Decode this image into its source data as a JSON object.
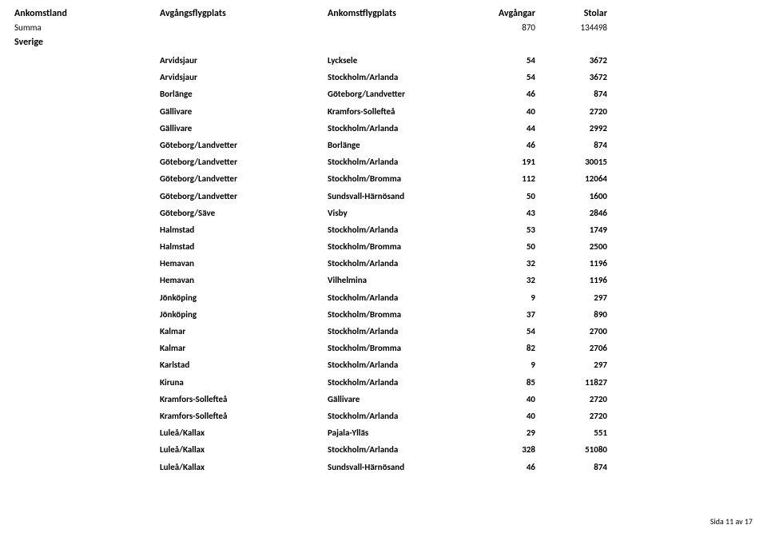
{
  "header": {
    "ankomstland": "Ankomstland",
    "avgangsflygplats": "Avgångsflygplats",
    "ankomstflygplats": "Ankomstflygplats",
    "avgangar": "Avgångar",
    "stolar": "Stolar"
  },
  "summa": {
    "label": "Summa",
    "avgangar": "870",
    "stolar": "134498"
  },
  "country": "Sverige",
  "rows": [
    {
      "dep": "Arvidsjaur",
      "arr": "Lycksele",
      "n": "54",
      "s": "3672"
    },
    {
      "dep": "Arvidsjaur",
      "arr": "Stockholm/Arlanda",
      "n": "54",
      "s": "3672"
    },
    {
      "dep": "Borlänge",
      "arr": "Göteborg/Landvetter",
      "n": "46",
      "s": "874"
    },
    {
      "dep": "Gällivare",
      "arr": "Kramfors-Sollefteå",
      "n": "40",
      "s": "2720"
    },
    {
      "dep": "Gällivare",
      "arr": "Stockholm/Arlanda",
      "n": "44",
      "s": "2992"
    },
    {
      "dep": "Göteborg/Landvetter",
      "arr": "Borlänge",
      "n": "46",
      "s": "874"
    },
    {
      "dep": "Göteborg/Landvetter",
      "arr": "Stockholm/Arlanda",
      "n": "191",
      "s": "30015"
    },
    {
      "dep": "Göteborg/Landvetter",
      "arr": "Stockholm/Bromma",
      "n": "112",
      "s": "12064"
    },
    {
      "dep": "Göteborg/Landvetter",
      "arr": "Sundsvall-Härnösand",
      "n": "50",
      "s": "1600"
    },
    {
      "dep": "Göteborg/Säve",
      "arr": "Visby",
      "n": "43",
      "s": "2846"
    },
    {
      "dep": "Halmstad",
      "arr": "Stockholm/Arlanda",
      "n": "53",
      "s": "1749"
    },
    {
      "dep": "Halmstad",
      "arr": "Stockholm/Bromma",
      "n": "50",
      "s": "2500"
    },
    {
      "dep": "Hemavan",
      "arr": "Stockholm/Arlanda",
      "n": "32",
      "s": "1196"
    },
    {
      "dep": "Hemavan",
      "arr": "Vilhelmina",
      "n": "32",
      "s": "1196"
    },
    {
      "dep": "Jönköping",
      "arr": "Stockholm/Arlanda",
      "n": "9",
      "s": "297"
    },
    {
      "dep": "Jönköping",
      "arr": "Stockholm/Bromma",
      "n": "37",
      "s": "890"
    },
    {
      "dep": "Kalmar",
      "arr": "Stockholm/Arlanda",
      "n": "54",
      "s": "2700"
    },
    {
      "dep": "Kalmar",
      "arr": "Stockholm/Bromma",
      "n": "82",
      "s": "2706"
    },
    {
      "dep": "Karlstad",
      "arr": "Stockholm/Arlanda",
      "n": "9",
      "s": "297"
    },
    {
      "dep": "Kiruna",
      "arr": "Stockholm/Arlanda",
      "n": "85",
      "s": "11827"
    },
    {
      "dep": "Kramfors-Sollefteå",
      "arr": "Gällivare",
      "n": "40",
      "s": "2720"
    },
    {
      "dep": "Kramfors-Sollefteå",
      "arr": "Stockholm/Arlanda",
      "n": "40",
      "s": "2720"
    },
    {
      "dep": "Luleå/Kallax",
      "arr": "Pajala-Ylläs",
      "n": "29",
      "s": "551"
    },
    {
      "dep": "Luleå/Kallax",
      "arr": "Stockholm/Arlanda",
      "n": "328",
      "s": "51080"
    },
    {
      "dep": "Luleå/Kallax",
      "arr": "Sundsvall-Härnösand",
      "n": "46",
      "s": "874"
    }
  ],
  "footer": "Sida 11 av 17"
}
